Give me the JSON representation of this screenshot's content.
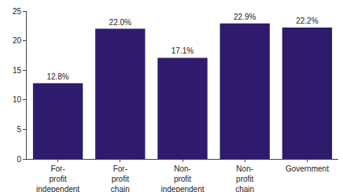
{
  "chart_data": {
    "type": "bar",
    "categories": [
      "For-\nprofit\nindependent",
      "For-\nprofit\nchain",
      "Non-\nprofit\nindependent",
      "Non-\nprofit\nchain",
      "Government"
    ],
    "values": [
      12.8,
      22.0,
      17.1,
      22.9,
      22.2
    ],
    "value_labels": [
      "12.8%",
      "22.0%",
      "17.1%",
      "22.9%",
      "22.2%"
    ],
    "color": "#2f1b6e",
    "ylim": [
      0,
      25
    ],
    "yticks": [
      0,
      5,
      10,
      15,
      20,
      25
    ],
    "grid": false,
    "data_labels": true
  }
}
